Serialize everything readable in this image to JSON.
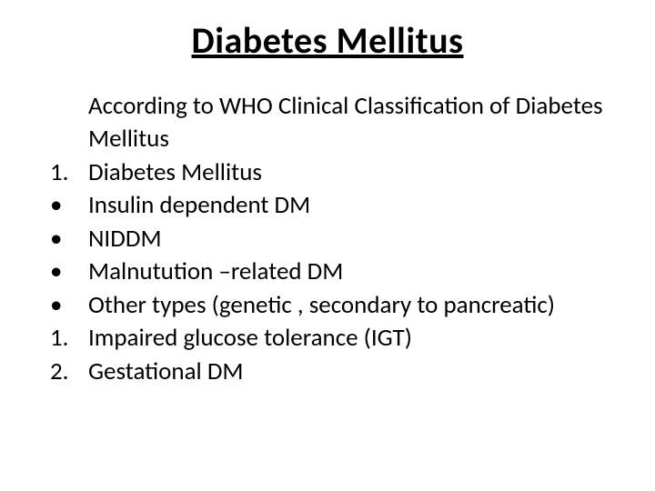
{
  "title": "Diabetes Mellitus",
  "intro": "According to WHO Clinical Classification of Diabetes  Mellitus",
  "items": [
    {
      "marker": "1.",
      "text": "Diabetes Mellitus"
    },
    {
      "marker": "•",
      "text": "Insulin dependent DM"
    },
    {
      "marker": "•",
      "text": "NIDDM"
    },
    {
      "marker": "•",
      "text": "Malnutution –related DM"
    },
    {
      "marker": "•",
      "text": "Other types (genetic , secondary to pancreatic)"
    },
    {
      "marker": "1.",
      "text": "Impaired glucose tolerance (IGT)"
    },
    {
      "marker": "2.",
      "text": "Gestational DM"
    }
  ],
  "style": {
    "background_color": "#ffffff",
    "text_color": "#000000",
    "title_fontsize": 40,
    "body_fontsize": 27,
    "font_family": "Calibri"
  }
}
